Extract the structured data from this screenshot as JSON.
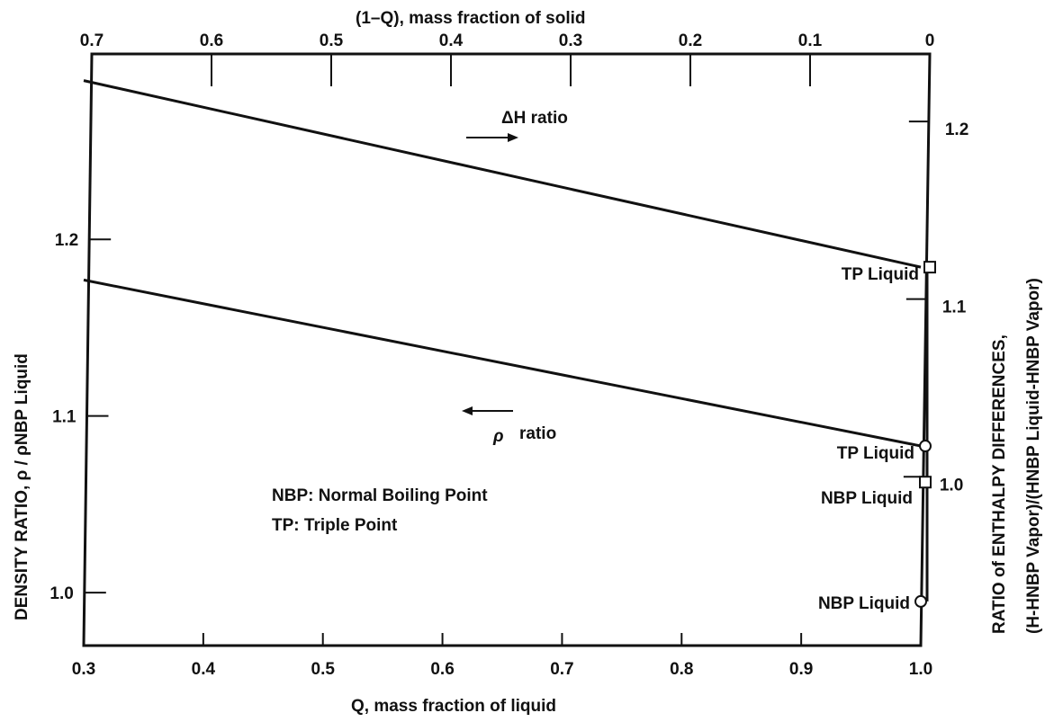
{
  "chart_data": {
    "type": "line",
    "x_bottom": {
      "label": "Q, mass fraction of liquid",
      "range": [
        0.3,
        1.0
      ],
      "ticks": [
        0.3,
        0.4,
        0.5,
        0.6,
        0.7,
        0.8,
        0.9,
        1.0
      ],
      "tick_labels": [
        "0.3",
        "0.4",
        "0.5",
        "0.6",
        "0.7",
        "0.8",
        "0.9",
        "1.0"
      ]
    },
    "x_top": {
      "label": "(1–Q), mass fraction of solid",
      "range": [
        0.7,
        0.0
      ],
      "ticks": [
        0.7,
        0.6,
        0.5,
        0.4,
        0.3,
        0.2,
        0.1,
        0
      ],
      "tick_labels": [
        "0.7",
        "0.6",
        "0.5",
        "0.4",
        "0.3",
        "0.2",
        "0.1",
        "0"
      ]
    },
    "y_left": {
      "label": "DENSITY RATIO, ρ / ρNBP Liquid",
      "range": [
        0.97,
        1.305
      ],
      "ticks": [
        1.0,
        1.1,
        1.2
      ],
      "tick_labels": [
        "1.0",
        "1.1",
        "1.2"
      ]
    },
    "y_right": {
      "label_line1": "RATIO of ENTHALPY DIFFERENCES,",
      "label_line2": "(H-HNBP Vapor)/(HNBP Liquid-HNBP Vapor)",
      "range": [
        0.905,
        1.238
      ],
      "ticks": [
        1.0,
        1.1,
        1.2
      ],
      "tick_labels": [
        "1.0",
        "1.1",
        "1.2"
      ]
    },
    "series": [
      {
        "name": "ΔH ratio",
        "axis": "right",
        "x": [
          0.3,
          1.0
        ],
        "y": [
          1.223,
          1.118
        ],
        "extension": {
          "x": [
            1.0,
            1.0
          ],
          "y": [
            1.118,
            0.997
          ]
        },
        "arrow_direction": "right"
      },
      {
        "name": "ρ ratio",
        "axis": "left",
        "x": [
          0.3,
          1.0
        ],
        "y": [
          1.177,
          1.083
        ],
        "extension": {
          "x": [
            1.0,
            1.0
          ],
          "y": [
            1.083,
            0.995
          ]
        },
        "arrow_direction": "left"
      }
    ],
    "markers": [
      {
        "label": "TP Liquid",
        "shape": "square",
        "axis": "right",
        "x": 1.0,
        "y": 1.118
      },
      {
        "label": "NBP Liquid",
        "shape": "square",
        "axis": "right",
        "x": 1.0,
        "y": 0.997
      },
      {
        "label": "TP Liquid",
        "shape": "circle",
        "axis": "left",
        "x": 1.0,
        "y": 1.083
      },
      {
        "label": "NBP Liquid",
        "shape": "circle",
        "axis": "left",
        "x": 1.0,
        "y": 0.995
      }
    ],
    "annotations": {
      "dh_label": "ΔH ratio",
      "rho_symbol": "ρ",
      "rho_word": "ratio"
    },
    "legend_note": [
      "NBP: Normal Boiling Point",
      "TP: Triple Point"
    ],
    "grid": false
  }
}
